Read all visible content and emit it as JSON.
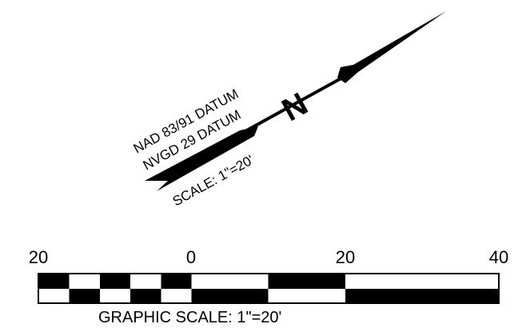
{
  "north_arrow": {
    "north_letter": "N",
    "datum_horizontal": "NAD 83/91 DATUM",
    "datum_vertical": "NVGD 29 DATUM",
    "scale_text": "SCALE: 1\"=20'"
  },
  "graphic_scale": {
    "tick_labels": [
      "20",
      "0",
      "20",
      "40"
    ],
    "caption": "GRAPHIC SCALE: 1\"=20'"
  },
  "colors": {
    "ink": "#000000",
    "paper": "#ffffff"
  }
}
